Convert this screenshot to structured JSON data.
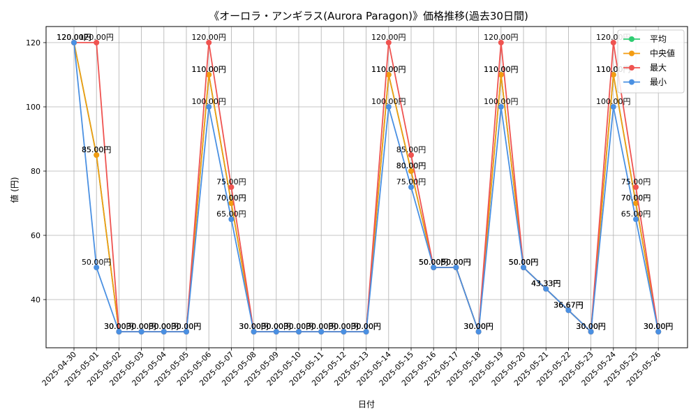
{
  "chart_data": {
    "type": "line",
    "title": "《オーロラ・アンギラス(Aurora Paragon)》価格推移(過去30日間)",
    "xlabel": "日付",
    "ylabel": "値 (円)",
    "ylim": [
      25,
      125
    ],
    "yticks": [
      40,
      60,
      80,
      100,
      120
    ],
    "grid": true,
    "legend_position": "top-right",
    "value_suffix": "円",
    "categories": [
      "2025-04-30",
      "2025-05-01",
      "2025-05-02",
      "2025-05-03",
      "2025-05-04",
      "2025-05-05",
      "2025-05-06",
      "2025-05-07",
      "2025-05-08",
      "2025-05-09",
      "2025-05-10",
      "2025-05-11",
      "2025-05-12",
      "2025-05-13",
      "2025-05-14",
      "2025-05-15",
      "2025-05-16",
      "2025-05-17",
      "2025-05-18",
      "2025-05-19",
      "2025-05-20",
      "2025-05-21",
      "2025-05-22",
      "2025-05-23",
      "2025-05-24",
      "2025-05-25",
      "2025-05-26"
    ],
    "series": [
      {
        "name": "平均",
        "color": "#2ecc71",
        "values": [
          120,
          85,
          30,
          30,
          30,
          30,
          110,
          70,
          30,
          30,
          30,
          30,
          30,
          30,
          110,
          80,
          50,
          50,
          30,
          110,
          50,
          43.33,
          36.67,
          30,
          110,
          70,
          30
        ]
      },
      {
        "name": "中央値",
        "color": "#f39c12",
        "values": [
          120,
          85,
          30,
          30,
          30,
          30,
          110,
          70,
          30,
          30,
          30,
          30,
          30,
          30,
          110,
          80,
          50,
          50,
          30,
          110,
          50,
          43.33,
          36.67,
          30,
          110,
          70,
          30
        ]
      },
      {
        "name": "最大",
        "color": "#ef5350",
        "values": [
          120,
          120,
          30,
          30,
          30,
          30,
          120,
          75,
          30,
          30,
          30,
          30,
          30,
          30,
          120,
          85,
          50,
          50,
          30,
          120,
          50,
          43.33,
          36.67,
          30,
          120,
          75,
          30
        ]
      },
      {
        "name": "最小",
        "color": "#4a90e2",
        "values": [
          120,
          50,
          30,
          30,
          30,
          30,
          100,
          65,
          30,
          30,
          30,
          30,
          30,
          30,
          100,
          75,
          50,
          50,
          30,
          100,
          50,
          43.33,
          36.67,
          30,
          100,
          65,
          30
        ]
      }
    ]
  }
}
